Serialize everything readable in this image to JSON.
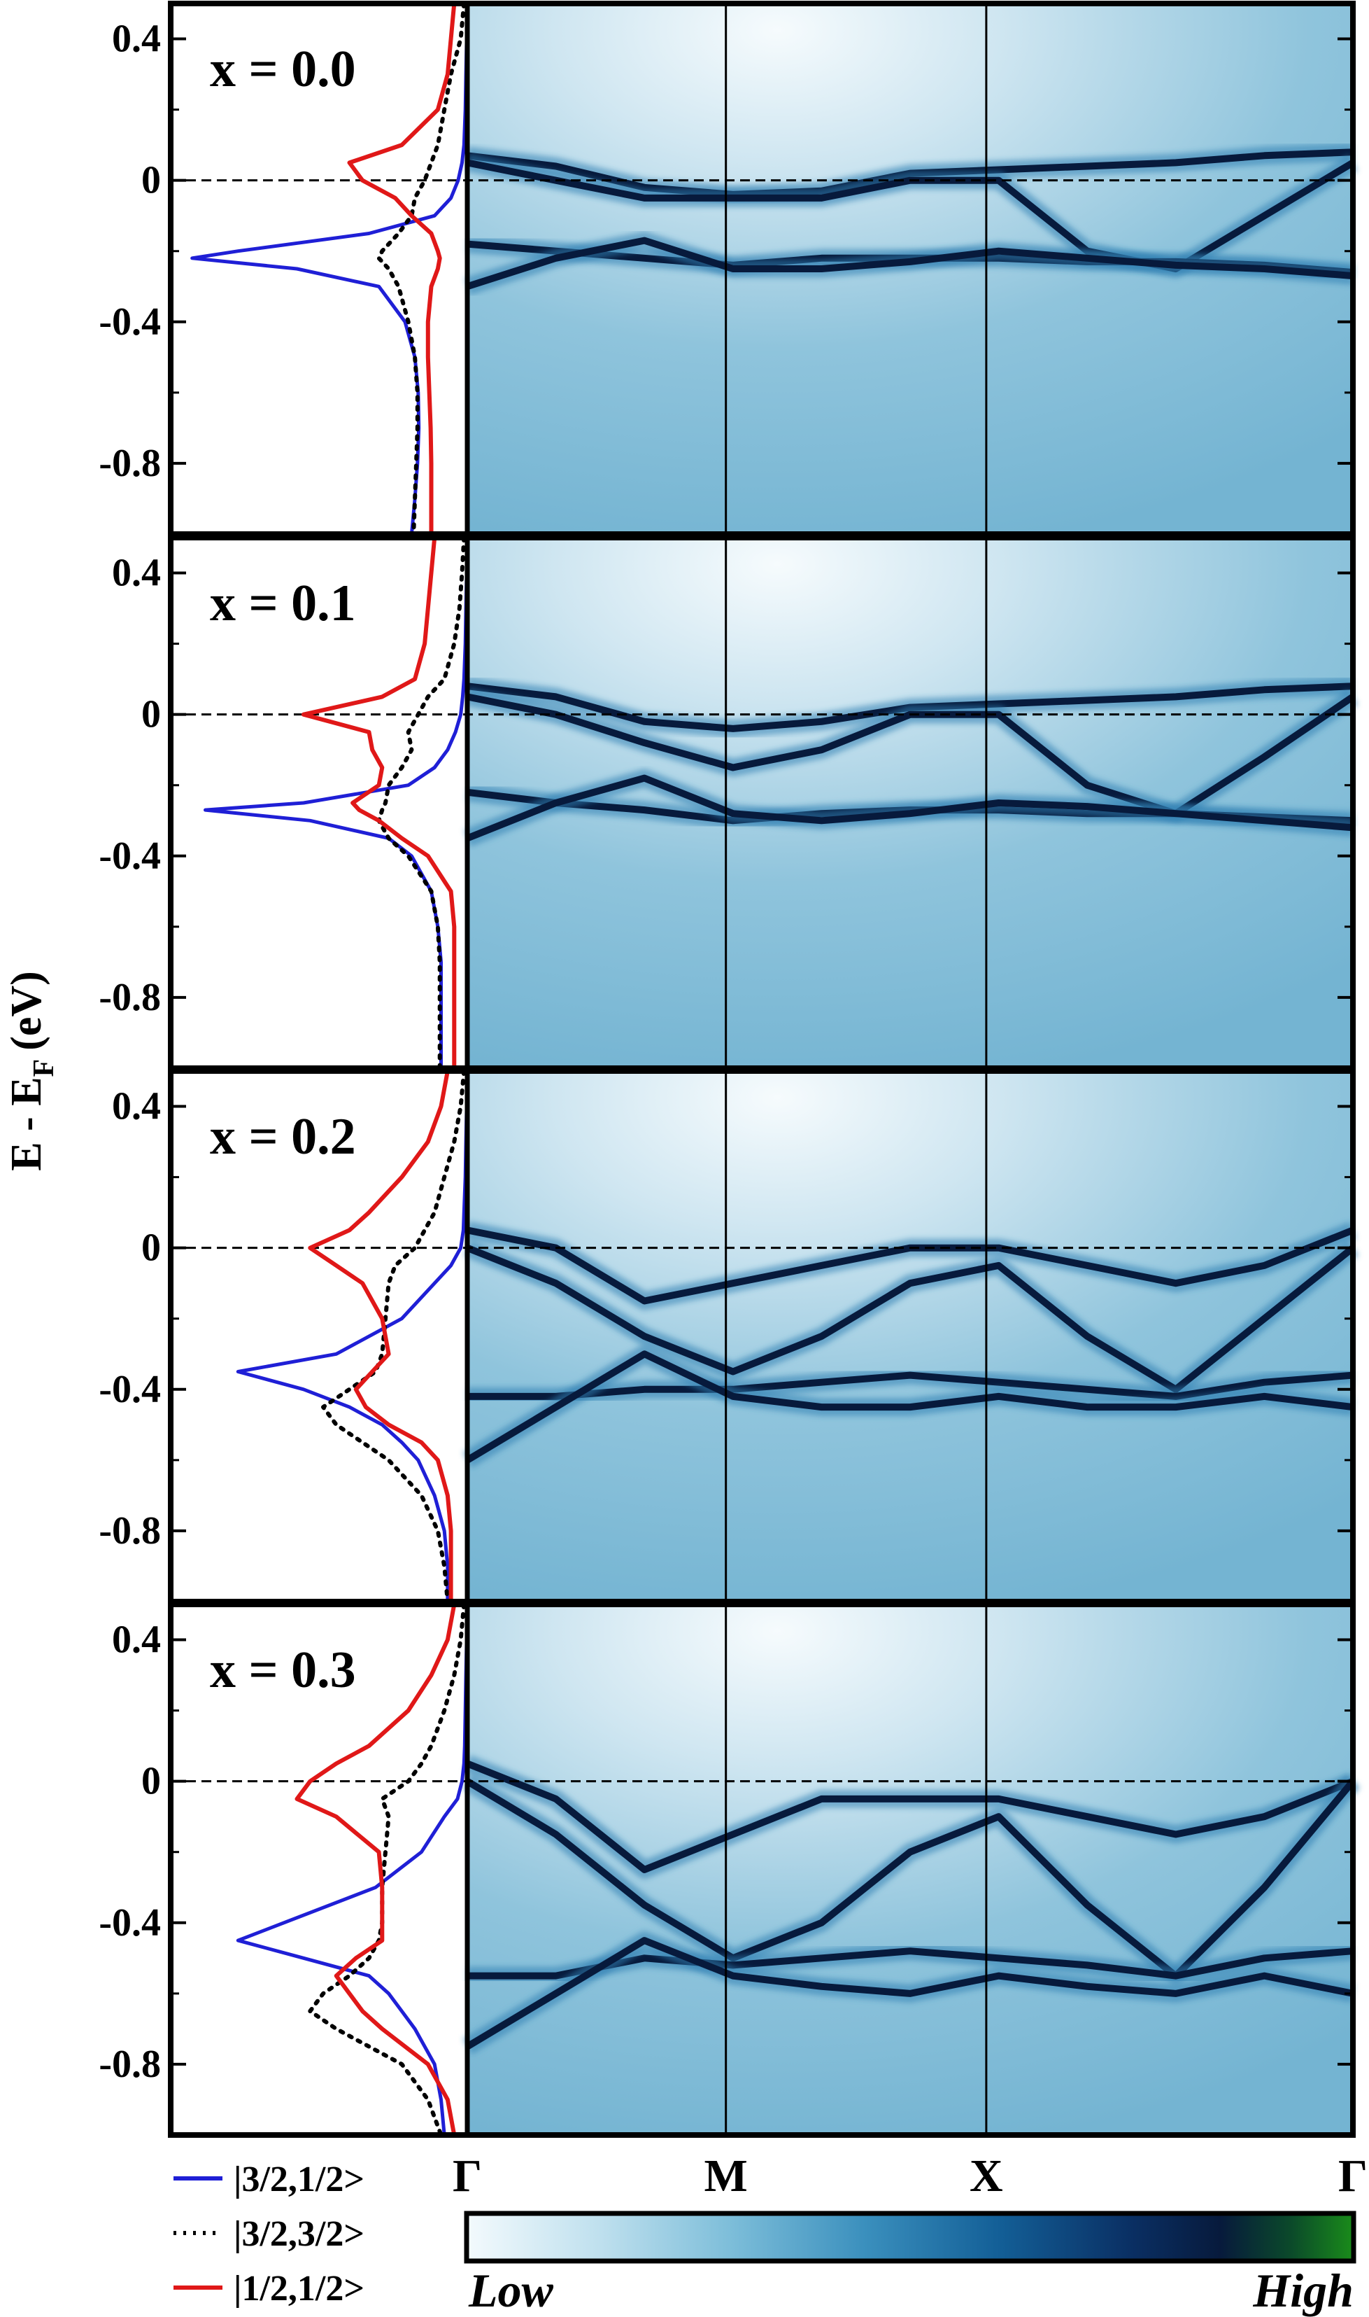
{
  "chart_data": {
    "type": "line",
    "ylabel": "E - E",
    "ylabel_subscript": "F",
    "ylabel_unit": "(eV)",
    "ylim": [
      -1.0,
      0.5
    ],
    "yticks": [
      0.4,
      0,
      -0.4,
      -0.8
    ],
    "ytick_labels": [
      "0.4",
      "0",
      "-0.4",
      "-0.8"
    ],
    "k_path_labels": [
      "Γ",
      "M",
      "X",
      "Γ"
    ],
    "legend": [
      {
        "label": "|3/2,1/2>",
        "color": "#1f1fd6",
        "style": "solid"
      },
      {
        "label": "|3/2,3/2>",
        "color": "#000000",
        "style": "dotted"
      },
      {
        "label": "|1/2,1/2>",
        "color": "#e01818",
        "style": "solid"
      }
    ],
    "colorbar": {
      "low_label": "Low",
      "high_label": "High",
      "colors": [
        "#f3fafd",
        "#bfe0ee",
        "#7cbdd9",
        "#3a8fbd",
        "#135f97",
        "#0a2f63",
        "#071a3c",
        "#0b4a2a",
        "#1a8c1a"
      ]
    },
    "panels": [
      {
        "label": "x = 0.0",
        "dos": {
          "energy": [
            0.5,
            0.4,
            0.3,
            0.2,
            0.1,
            0.05,
            0.0,
            -0.05,
            -0.1,
            -0.15,
            -0.2,
            -0.22,
            -0.25,
            -0.3,
            -0.4,
            -0.5,
            -0.6,
            -0.7,
            -0.8,
            -0.9,
            -1.0
          ],
          "j32_12": [
            0.01,
            0.01,
            0.02,
            0.03,
            0.05,
            0.08,
            0.14,
            0.25,
            0.5,
            1.5,
            3.5,
            4.2,
            2.6,
            1.35,
            0.95,
            0.8,
            0.75,
            0.74,
            0.76,
            0.8,
            0.85
          ],
          "j32_32": [
            0.05,
            0.1,
            0.25,
            0.35,
            0.45,
            0.55,
            0.65,
            0.8,
            0.85,
            1.05,
            1.3,
            1.35,
            1.2,
            1.05,
            0.9,
            0.8,
            0.76,
            0.76,
            0.78,
            0.8,
            0.82
          ],
          "j12_12": [
            0.2,
            0.25,
            0.3,
            0.45,
            1.0,
            1.8,
            1.6,
            1.1,
            0.85,
            0.55,
            0.45,
            0.42,
            0.45,
            0.55,
            0.6,
            0.6,
            0.58,
            0.56,
            0.55,
            0.55,
            0.55
          ]
        },
        "bands": [
          {
            "y": [
              0.07,
              0.04,
              -0.02,
              -0.04,
              -0.03,
              0.02,
              0.03,
              0.04,
              0.05,
              0.07,
              0.08
            ]
          },
          {
            "y": [
              0.05,
              0.0,
              -0.05,
              -0.05,
              -0.05,
              0.0,
              0.0,
              -0.2,
              -0.25,
              -0.1,
              0.05
            ]
          },
          {
            "y": [
              -0.18,
              -0.2,
              -0.22,
              -0.24,
              -0.22,
              -0.22,
              -0.22,
              -0.23,
              -0.23,
              -0.24,
              -0.26
            ]
          },
          {
            "y": [
              -0.3,
              -0.22,
              -0.17,
              -0.25,
              -0.25,
              -0.23,
              -0.2,
              -0.22,
              -0.24,
              -0.25,
              -0.27
            ]
          }
        ]
      },
      {
        "label": "x = 0.1",
        "dos": {
          "energy": [
            0.5,
            0.4,
            0.3,
            0.2,
            0.1,
            0.05,
            0.0,
            -0.05,
            -0.1,
            -0.15,
            -0.2,
            -0.25,
            -0.27,
            -0.3,
            -0.35,
            -0.4,
            -0.5,
            -0.6,
            -0.7,
            -0.8,
            -0.9,
            -1.0
          ],
          "j32_12": [
            0.01,
            0.01,
            0.02,
            0.03,
            0.05,
            0.07,
            0.1,
            0.18,
            0.3,
            0.5,
            0.9,
            2.5,
            4.0,
            2.4,
            1.2,
            0.85,
            0.55,
            0.45,
            0.4,
            0.4,
            0.4,
            0.4
          ],
          "j32_32": [
            0.05,
            0.08,
            0.12,
            0.2,
            0.35,
            0.6,
            0.75,
            0.9,
            0.85,
            1.0,
            1.2,
            1.25,
            1.3,
            1.35,
            1.2,
            0.9,
            0.55,
            0.45,
            0.42,
            0.42,
            0.42,
            0.42
          ],
          "j12_12": [
            0.5,
            0.55,
            0.6,
            0.65,
            0.8,
            1.3,
            2.5,
            1.5,
            1.45,
            1.3,
            1.35,
            1.75,
            1.65,
            1.35,
            1.0,
            0.6,
            0.25,
            0.2,
            0.2,
            0.2,
            0.2,
            0.2
          ]
        },
        "bands": [
          {
            "y": [
              0.08,
              0.05,
              -0.02,
              -0.04,
              -0.02,
              0.02,
              0.03,
              0.04,
              0.05,
              0.07,
              0.08
            ]
          },
          {
            "y": [
              0.05,
              0.0,
              -0.08,
              -0.15,
              -0.1,
              0.0,
              0.0,
              -0.2,
              -0.28,
              -0.12,
              0.05
            ]
          },
          {
            "y": [
              -0.22,
              -0.25,
              -0.27,
              -0.3,
              -0.28,
              -0.27,
              -0.27,
              -0.28,
              -0.28,
              -0.29,
              -0.3
            ]
          },
          {
            "y": [
              -0.35,
              -0.25,
              -0.18,
              -0.28,
              -0.3,
              -0.28,
              -0.25,
              -0.26,
              -0.28,
              -0.3,
              -0.32
            ]
          }
        ]
      },
      {
        "label": "x = 0.2",
        "dos": {
          "energy": [
            0.5,
            0.4,
            0.3,
            0.2,
            0.1,
            0.05,
            0.0,
            -0.05,
            -0.1,
            -0.2,
            -0.3,
            -0.35,
            -0.4,
            -0.45,
            -0.5,
            -0.55,
            -0.6,
            -0.7,
            -0.8,
            -0.9,
            -1.0
          ],
          "j32_12": [
            0.01,
            0.01,
            0.02,
            0.03,
            0.05,
            0.06,
            0.1,
            0.25,
            0.5,
            1.0,
            2.0,
            3.5,
            2.5,
            1.8,
            1.3,
            1.0,
            0.75,
            0.5,
            0.35,
            0.3,
            0.3
          ],
          "j32_32": [
            0.05,
            0.1,
            0.2,
            0.35,
            0.5,
            0.65,
            0.8,
            1.1,
            1.2,
            1.25,
            1.3,
            1.4,
            1.8,
            2.2,
            2.0,
            1.6,
            1.2,
            0.7,
            0.45,
            0.35,
            0.3
          ],
          "j12_12": [
            0.3,
            0.4,
            0.6,
            1.0,
            1.5,
            1.8,
            2.4,
            2.0,
            1.6,
            1.3,
            1.2,
            1.45,
            1.7,
            1.55,
            1.2,
            0.7,
            0.45,
            0.3,
            0.25,
            0.25,
            0.25
          ]
        },
        "bands": [
          {
            "y": [
              0.05,
              0.0,
              -0.15,
              -0.1,
              -0.05,
              0.0,
              0.0,
              -0.05,
              -0.1,
              -0.05,
              0.05
            ]
          },
          {
            "y": [
              0.0,
              -0.1,
              -0.25,
              -0.35,
              -0.25,
              -0.1,
              -0.05,
              -0.25,
              -0.4,
              -0.2,
              0.0
            ]
          },
          {
            "y": [
              -0.42,
              -0.42,
              -0.4,
              -0.4,
              -0.38,
              -0.36,
              -0.38,
              -0.4,
              -0.42,
              -0.38,
              -0.36
            ]
          },
          {
            "y": [
              -0.6,
              -0.45,
              -0.3,
              -0.42,
              -0.45,
              -0.45,
              -0.42,
              -0.45,
              -0.45,
              -0.42,
              -0.45
            ]
          }
        ]
      },
      {
        "label": "x = 0.3",
        "dos": {
          "energy": [
            0.5,
            0.4,
            0.3,
            0.2,
            0.1,
            0.05,
            0.0,
            -0.05,
            -0.1,
            -0.2,
            -0.3,
            -0.4,
            -0.45,
            -0.5,
            -0.55,
            -0.6,
            -0.65,
            -0.7,
            -0.8,
            -0.9,
            -1.0
          ],
          "j32_12": [
            0.01,
            0.01,
            0.02,
            0.03,
            0.04,
            0.05,
            0.08,
            0.15,
            0.35,
            0.7,
            1.4,
            2.8,
            3.5,
            2.5,
            1.5,
            1.2,
            1.0,
            0.8,
            0.5,
            0.4,
            0.35
          ],
          "j32_32": [
            0.05,
            0.1,
            0.2,
            0.35,
            0.55,
            0.7,
            0.9,
            1.3,
            1.2,
            1.25,
            1.3,
            1.3,
            1.35,
            1.5,
            1.8,
            2.2,
            2.4,
            2.0,
            1.0,
            0.6,
            0.4
          ],
          "j12_12": [
            0.2,
            0.3,
            0.55,
            0.9,
            1.5,
            2.0,
            2.4,
            2.6,
            2.0,
            1.35,
            1.3,
            1.3,
            1.3,
            1.7,
            2.0,
            1.8,
            1.6,
            1.3,
            0.6,
            0.3,
            0.2
          ]
        },
        "bands": [
          {
            "y": [
              0.05,
              -0.05,
              -0.25,
              -0.15,
              -0.05,
              -0.05,
              -0.05,
              -0.1,
              -0.15,
              -0.1,
              0.0
            ]
          },
          {
            "y": [
              0.0,
              -0.15,
              -0.35,
              -0.5,
              -0.4,
              -0.2,
              -0.1,
              -0.35,
              -0.55,
              -0.3,
              0.0
            ]
          },
          {
            "y": [
              -0.55,
              -0.55,
              -0.5,
              -0.52,
              -0.5,
              -0.48,
              -0.5,
              -0.52,
              -0.55,
              -0.5,
              -0.48
            ]
          },
          {
            "y": [
              -0.75,
              -0.6,
              -0.45,
              -0.55,
              -0.58,
              -0.6,
              -0.55,
              -0.58,
              -0.6,
              -0.55,
              -0.6
            ]
          }
        ]
      }
    ]
  }
}
